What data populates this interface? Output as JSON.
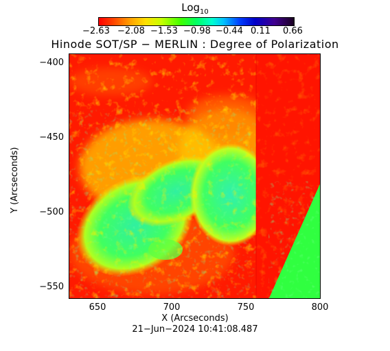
{
  "colorbar": {
    "title_base": "Log",
    "title_sub": "10",
    "ticks": [
      "−2.63",
      "−2.08",
      "−1.53",
      "−0.98",
      "−0.44",
      "0.11",
      "0.66"
    ]
  },
  "plot": {
    "title": "Hinode SOT/SP − MERLIN : Degree of Polarization",
    "ylabel": "Y (Arcseconds)",
    "xlabel": "X (Arcseconds)",
    "y_ticks": [
      "−400",
      "−450",
      "−500",
      "−550"
    ],
    "x_ticks": [
      "650",
      "700",
      "750",
      "800"
    ],
    "timestamp": "21−Jun−2024 10:41:08.487"
  },
  "colors": {
    "low": "#ff0000",
    "mid": "#00ff60",
    "high": "#1a0020"
  }
}
